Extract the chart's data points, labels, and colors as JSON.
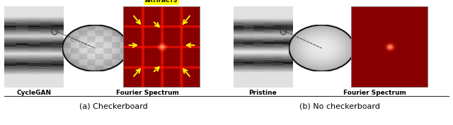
{
  "fig_width": 6.4,
  "fig_height": 1.77,
  "dpi": 100,
  "bg_color": "#ffffff",
  "panel_a_label": "(a) Checkerboard",
  "panel_b_label": "(b) No checkerboard",
  "label_cyclegan": "CycleGAN",
  "label_pristine": "Pristine",
  "label_fourier": "Fourier Spectrum",
  "artifacts_text": "ARTIFACTS",
  "artifacts_bg": "#ffff00",
  "artifacts_text_color": "#000000",
  "dark_red_r": 0.54,
  "dark_red_g": 0.0,
  "dark_red_b": 0.0,
  "arrow_color": "#ffff00",
  "separator_color": "#333333"
}
